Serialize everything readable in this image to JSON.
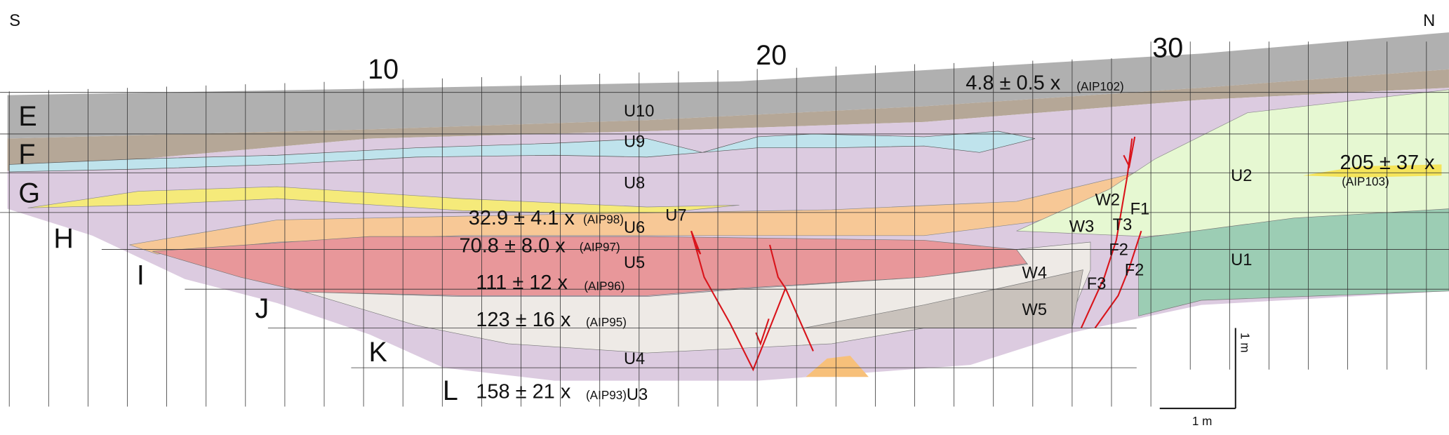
{
  "orientation": {
    "south": "S",
    "north": "N"
  },
  "column_labels": [
    "10",
    "20",
    "30"
  ],
  "row_labels": [
    "E",
    "F",
    "G",
    "H",
    "I",
    "J",
    "K",
    "L"
  ],
  "units": [
    "U10",
    "U9",
    "U8",
    "U7",
    "U6",
    "U5",
    "U4",
    "U3",
    "U2",
    "U1"
  ],
  "features": [
    "W2",
    "W3",
    "W4",
    "W5",
    "T3",
    "F1",
    "F2",
    "F2",
    "F3"
  ],
  "dates": [
    {
      "age": "4.8 ± 0.5 x",
      "sample": "(AIP102)"
    },
    {
      "age": "32.9 ± 4.1 x",
      "sample": "(AIP98)"
    },
    {
      "age": "70.8 ± 8.0 x",
      "sample": "(AIP97)"
    },
    {
      "age": "111 ± 12 x",
      "sample": "(AIP96)"
    },
    {
      "age": "123 ± 16 x",
      "sample": "(AIP95)"
    },
    {
      "age": "158 ± 21 x",
      "sample": "(AIP93)"
    },
    {
      "age": "205 ± 37 x",
      "sample": "(AIP103)"
    }
  ],
  "scale": {
    "vertical": "1 m",
    "horizontal": "1 m"
  }
}
